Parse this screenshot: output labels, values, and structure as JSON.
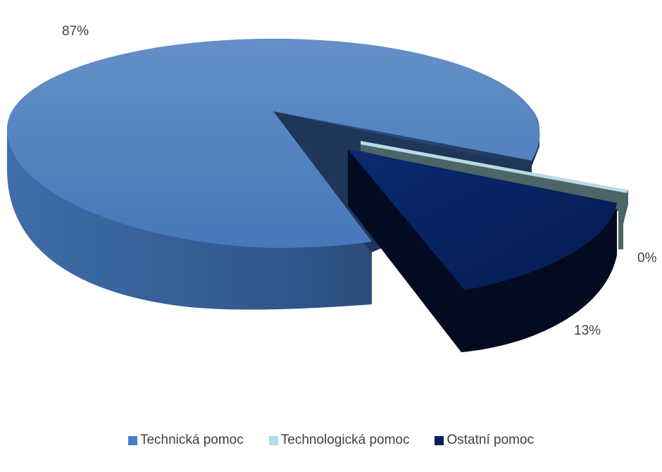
{
  "chart_data": {
    "type": "pie",
    "title": "",
    "series": [
      {
        "name": "Technická pomoc",
        "value": 87,
        "label": "87%",
        "color": "#4a7fc1"
      },
      {
        "name": "Technologická pomoc",
        "value": 0,
        "label": "0%",
        "color": "#b9dbe8"
      },
      {
        "name": "Ostatní pomoc",
        "value": 13,
        "label": "13%",
        "color": "#06205e"
      }
    ],
    "legend_position": "bottom",
    "style": "3d-exploded"
  }
}
